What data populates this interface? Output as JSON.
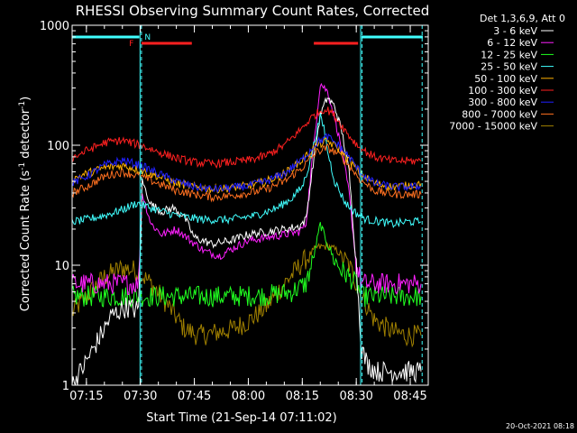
{
  "chart_data": {
    "type": "line",
    "title": "RHESSI Observing Summary Count Rates, Corrected",
    "xlabel": "Start Time (21-Sep-14 07:11:02)",
    "ylabel_main": "Corrected Count Rate (s",
    "ylabel_sup1": "-1",
    "ylabel_mid": " detector",
    "ylabel_sup2": "-1",
    "ylabel_end": ")",
    "x_ticks": [
      "07:15",
      "07:30",
      "07:45",
      "08:00",
      "08:15",
      "08:30",
      "08:45"
    ],
    "x_tick_minutes": [
      15,
      30,
      45,
      60,
      75,
      90,
      105
    ],
    "xlim_minutes": [
      11.03,
      110
    ],
    "y_scale": "log",
    "ylim": [
      1,
      1000
    ],
    "y_ticks": [
      "1",
      "10",
      "100",
      "1000"
    ],
    "y_tick_values": [
      1,
      10,
      100,
      1000
    ],
    "legend_header": "Det 1,3,6,9, Att 0",
    "legend_position": "right",
    "footer_date": "20-Oct-2021 08:18",
    "annotations": [
      {
        "text": "F",
        "x_minutes": 27.5,
        "color": "#ff2020"
      },
      {
        "text": "N",
        "x_minutes": 32,
        "color": "#40ffff"
      }
    ],
    "cyan_bars": [
      [
        11.03,
        29.7
      ],
      [
        91.4,
        108.5
      ]
    ],
    "red_bars": [
      [
        30.3,
        44.3
      ],
      [
        78.2,
        90.5
      ]
    ],
    "vlines_solid": [
      29.9,
      91.2
    ],
    "vlines_dashed": [
      30.3,
      91.6,
      108.3
    ],
    "series": [
      {
        "name": "3 - 6 keV",
        "color": "#ffffff",
        "x": [
          11,
          14,
          18,
          22,
          26,
          29.5,
          30.5,
          33,
          36,
          39,
          42,
          45,
          50,
          55,
          60,
          65,
          70,
          74,
          76,
          78,
          80,
          82,
          84,
          86,
          88,
          90,
          91.5,
          93,
          96,
          100,
          104,
          108
        ],
        "y": [
          1,
          1.4,
          2.3,
          3.8,
          4.5,
          4.2,
          50,
          32,
          28,
          30,
          26,
          17,
          15,
          16,
          18,
          19,
          20,
          21,
          24,
          70,
          180,
          250,
          210,
          130,
          60,
          10,
          2,
          1.5,
          1.3,
          1.3,
          1.3,
          1.3
        ]
      },
      {
        "name": "6 - 12 keV",
        "color": "#ff20ff",
        "x": [
          11,
          16,
          22,
          29.5,
          30.5,
          33,
          36,
          40,
          44,
          48,
          52,
          56,
          60,
          65,
          70,
          74,
          76,
          78,
          80,
          82,
          84,
          86,
          88,
          90,
          91.5,
          95,
          100,
          104,
          108
        ],
        "y": [
          7,
          7,
          7,
          7,
          40,
          22,
          18,
          20,
          16,
          13,
          12,
          14,
          16,
          17,
          18,
          19,
          22,
          90,
          330,
          280,
          170,
          90,
          40,
          10,
          7,
          7,
          7,
          7,
          7
        ]
      },
      {
        "name": "12 - 25 keV",
        "color": "#20ff20",
        "x": [
          11,
          20,
          29.5,
          30.5,
          36,
          45,
          55,
          65,
          72,
          76,
          78,
          80,
          82,
          84,
          86,
          88,
          90,
          91.5,
          100,
          108
        ],
        "y": [
          5.5,
          5.5,
          5.5,
          5.5,
          5.5,
          5.5,
          5.5,
          5.6,
          6,
          7,
          11,
          22,
          15,
          11,
          9,
          8,
          7,
          5.5,
          5.5,
          5.5
        ]
      },
      {
        "name": "25 - 50 keV",
        "color": "#40ffff",
        "x": [
          11,
          15,
          20,
          25,
          29,
          33,
          38,
          43,
          48,
          55,
          62,
          68,
          72,
          75,
          77,
          79,
          80,
          81,
          82,
          84,
          87,
          90,
          93,
          97,
          100,
          104,
          108
        ],
        "y": [
          23,
          24,
          26,
          29,
          33,
          30,
          27,
          25,
          24,
          24,
          26,
          30,
          36,
          45,
          70,
          130,
          170,
          140,
          90,
          50,
          33,
          27,
          24,
          23,
          22,
          23,
          23
        ]
      },
      {
        "name": "50 - 100 keV",
        "color": "#ffb000",
        "x": [
          11,
          15,
          20,
          25,
          30,
          35,
          40,
          45,
          50,
          55,
          60,
          65,
          70,
          75,
          79,
          82,
          85,
          88,
          91,
          95,
          100,
          104,
          108
        ],
        "y": [
          52,
          58,
          65,
          68,
          62,
          55,
          48,
          45,
          43,
          44,
          46,
          50,
          58,
          75,
          100,
          108,
          95,
          75,
          58,
          48,
          45,
          46,
          48
        ]
      },
      {
        "name": "100 - 300 keV",
        "color": "#ff2020",
        "x": [
          11,
          15,
          20,
          25,
          30,
          35,
          40,
          45,
          50,
          55,
          60,
          65,
          70,
          74,
          78,
          81,
          83,
          85,
          88,
          91,
          95,
          100,
          104,
          108
        ],
        "y": [
          78,
          90,
          105,
          110,
          100,
          88,
          78,
          72,
          70,
          72,
          75,
          82,
          100,
          130,
          175,
          200,
          190,
          160,
          120,
          95,
          80,
          74,
          74,
          74
        ]
      },
      {
        "name": "300 - 800 keV",
        "color": "#2020ff",
        "x": [
          11,
          15,
          20,
          25,
          30,
          35,
          40,
          45,
          50,
          55,
          60,
          65,
          70,
          75,
          79,
          82,
          85,
          88,
          91,
          95,
          100,
          104,
          108
        ],
        "y": [
          48,
          55,
          68,
          75,
          68,
          58,
          50,
          45,
          43,
          44,
          46,
          50,
          58,
          76,
          105,
          118,
          100,
          80,
          60,
          48,
          45,
          45,
          45
        ]
      },
      {
        "name": "800 - 7000 keV",
        "color": "#ff7020",
        "x": [
          11,
          15,
          20,
          25,
          30,
          35,
          40,
          45,
          50,
          55,
          60,
          65,
          70,
          75,
          79,
          82,
          85,
          88,
          91,
          95,
          100,
          104,
          108
        ],
        "y": [
          40,
          45,
          55,
          60,
          55,
          48,
          42,
          39,
          37,
          38,
          40,
          43,
          50,
          65,
          88,
          95,
          85,
          68,
          52,
          42,
          39,
          39,
          39
        ]
      },
      {
        "name": "7000 - 15000 keV",
        "color": "#a08000",
        "x": [
          11,
          15,
          20,
          25,
          29,
          33,
          38,
          42,
          46,
          50,
          55,
          60,
          65,
          70,
          75,
          79,
          82,
          85,
          88,
          91,
          95,
          100,
          104,
          108
        ],
        "y": [
          4,
          5.5,
          8,
          9.5,
          9,
          7,
          4.5,
          3,
          2.6,
          2.7,
          2.9,
          3.4,
          4.5,
          7,
          10.5,
          14,
          14.5,
          13,
          10,
          6,
          3.5,
          2.8,
          2.6,
          2.6
        ]
      }
    ]
  }
}
